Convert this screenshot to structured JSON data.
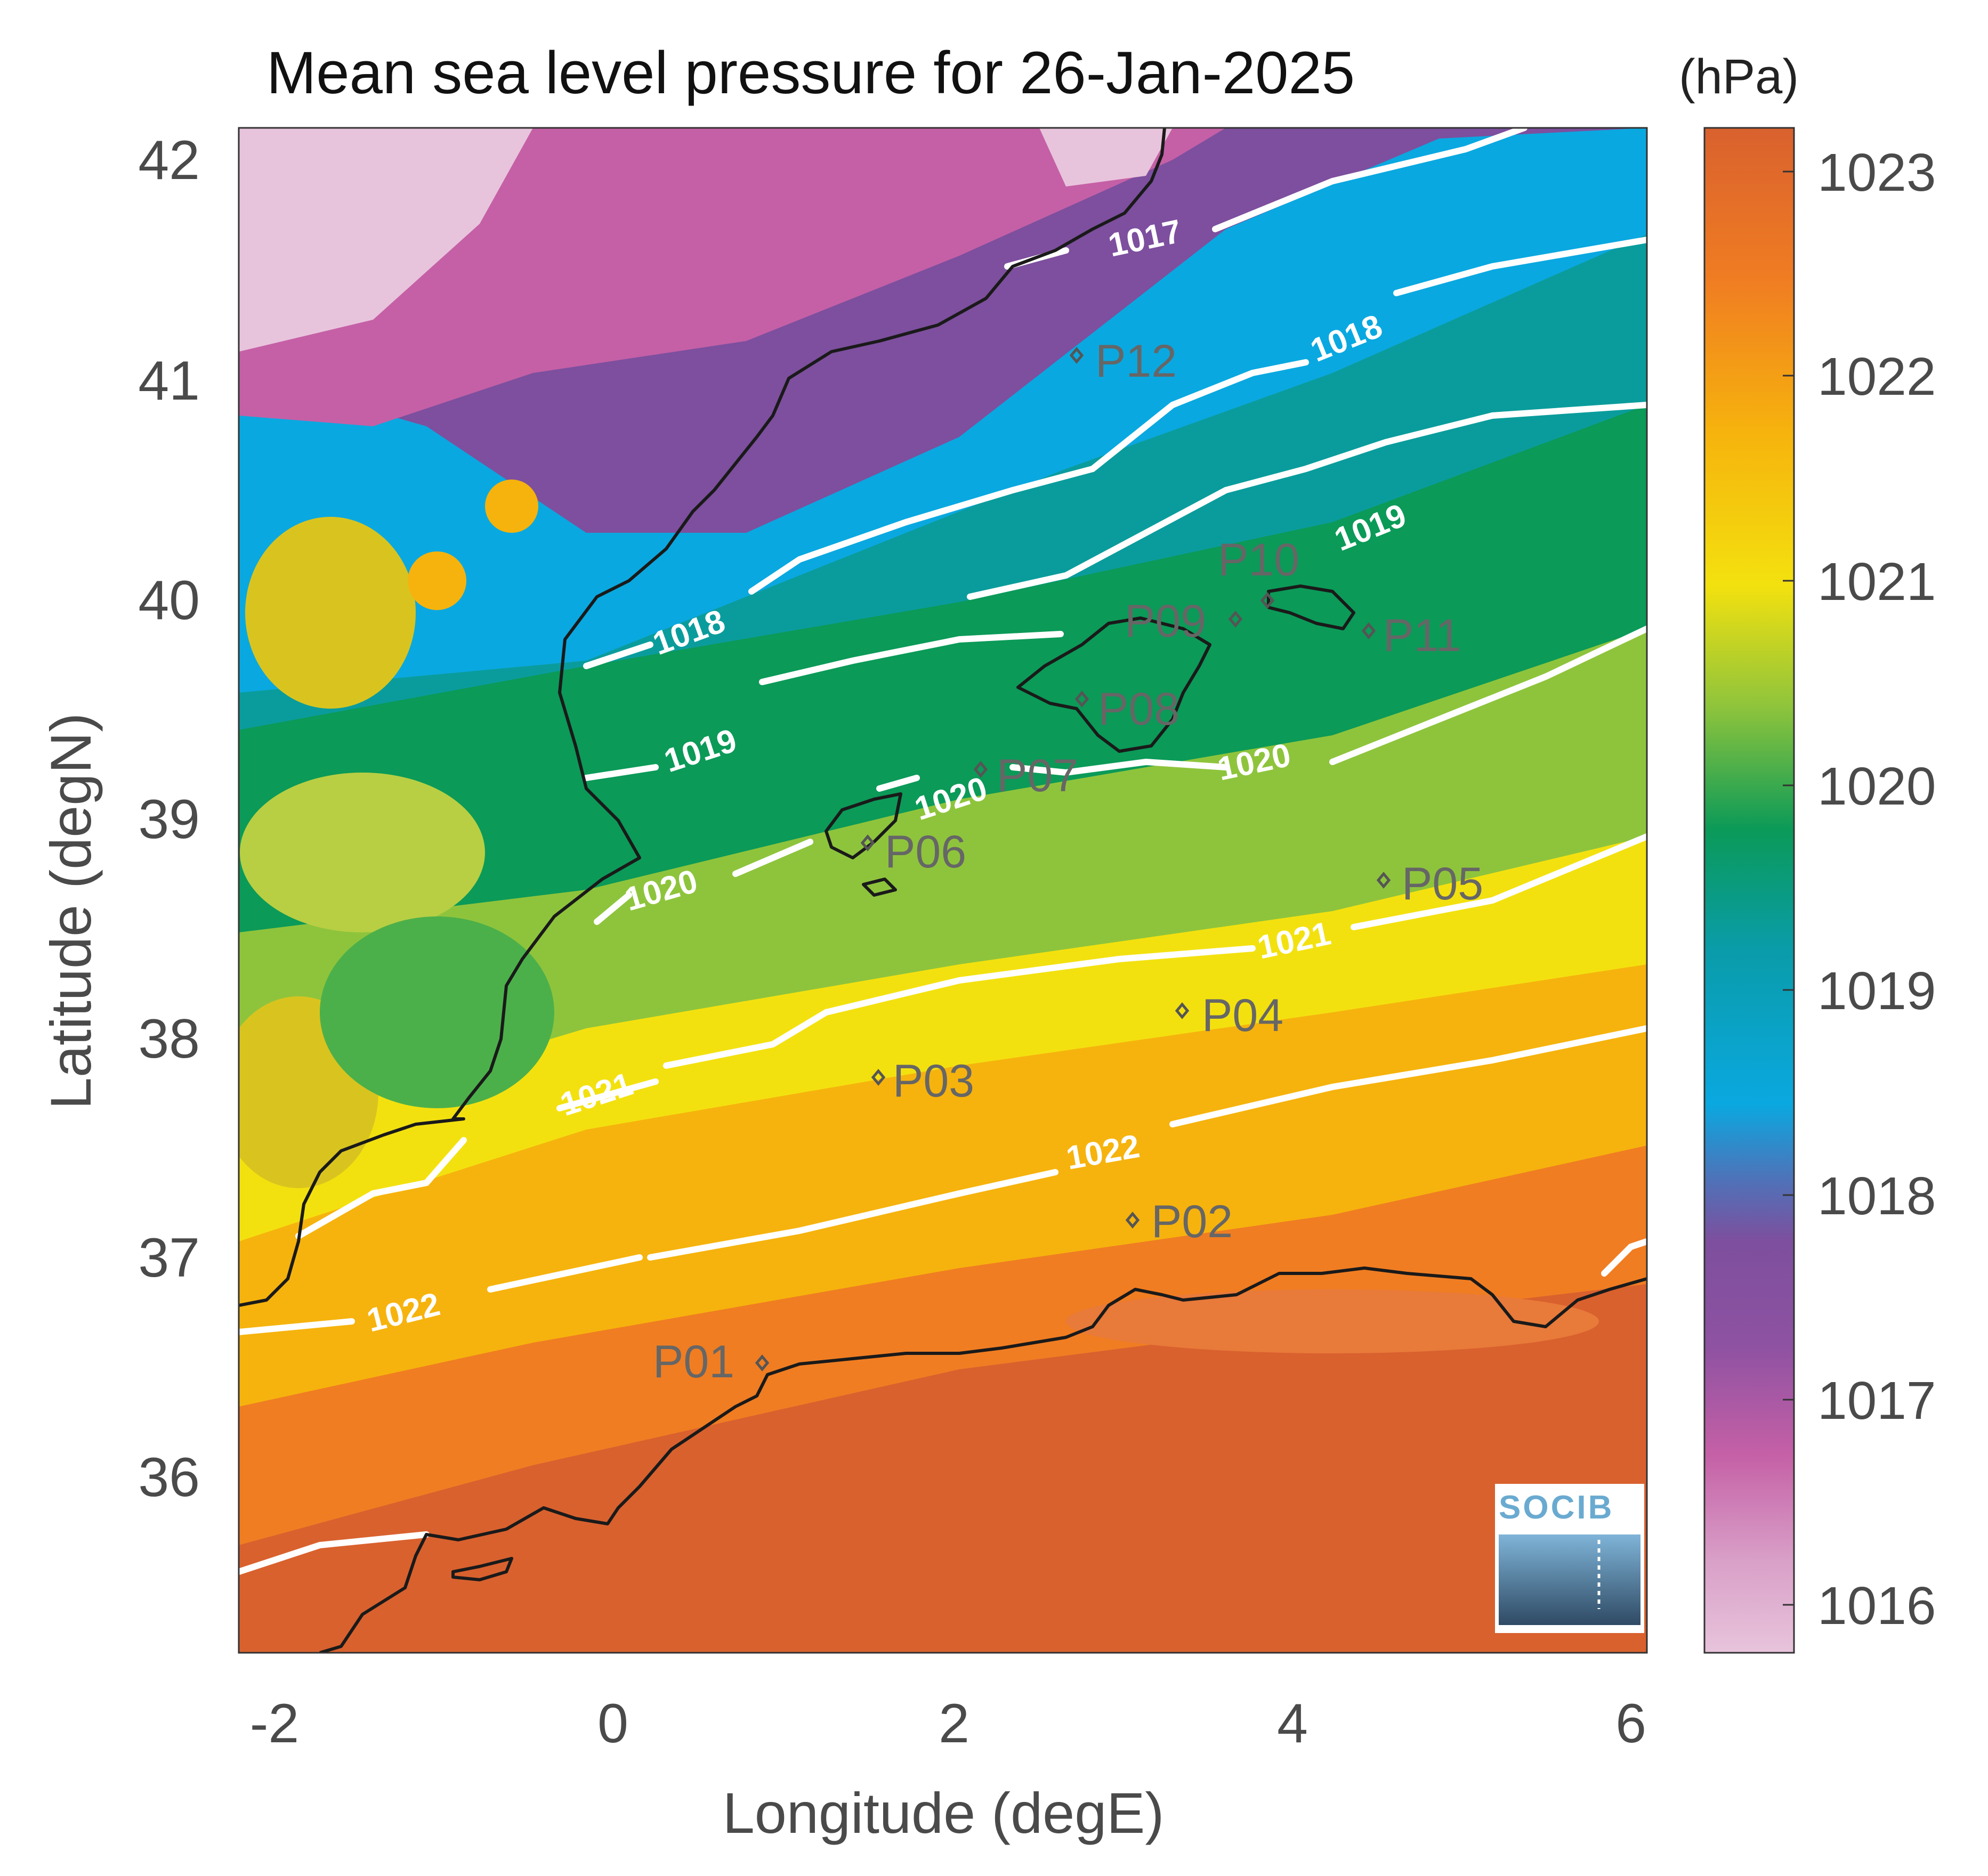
{
  "title": "Mean sea level pressure for 26-Jan-2025",
  "units": "(hPa)",
  "axes": {
    "xlabel": "Longitude (degE)",
    "ylabel": "Latitude (degN)",
    "x_ticks": [
      "-2",
      "0",
      "2",
      "4",
      "6"
    ],
    "y_ticks": [
      "36",
      "37",
      "38",
      "39",
      "40",
      "41",
      "42"
    ]
  },
  "colorbar": {
    "ticks": [
      "1016",
      "1017",
      "1018",
      "1019",
      "1020",
      "1021",
      "1022",
      "1023"
    ]
  },
  "contours": [
    {
      "level": "1017",
      "label_text": "1017"
    },
    {
      "level": "1018",
      "label_text": "1018"
    },
    {
      "level": "1019",
      "label_text": "1019"
    },
    {
      "level": "1020",
      "label_text": "1020"
    },
    {
      "level": "1021",
      "label_text": "1021"
    },
    {
      "level": "1022",
      "label_text": "1022"
    }
  ],
  "points": [
    {
      "name": "P01"
    },
    {
      "name": "P02"
    },
    {
      "name": "P03"
    },
    {
      "name": "P04"
    },
    {
      "name": "P05"
    },
    {
      "name": "P06"
    },
    {
      "name": "P07"
    },
    {
      "name": "P08"
    },
    {
      "name": "P09"
    },
    {
      "name": "P10"
    },
    {
      "name": "P11"
    },
    {
      "name": "P12"
    }
  ],
  "logo": {
    "text": "SOCIB"
  },
  "colors": {
    "colormap": [
      "#e8c4dc",
      "#c560a6",
      "#7d4f9e",
      "#3d7fc2",
      "#0aa8e0",
      "#0a9c9c",
      "#0b9a58",
      "#8ec43c",
      "#f3e10f",
      "#f6b30d",
      "#f07d22",
      "#d9612e"
    ],
    "contour": "#ffffff",
    "coastline": "#1a1a1a",
    "point_marker": "#555555"
  }
}
